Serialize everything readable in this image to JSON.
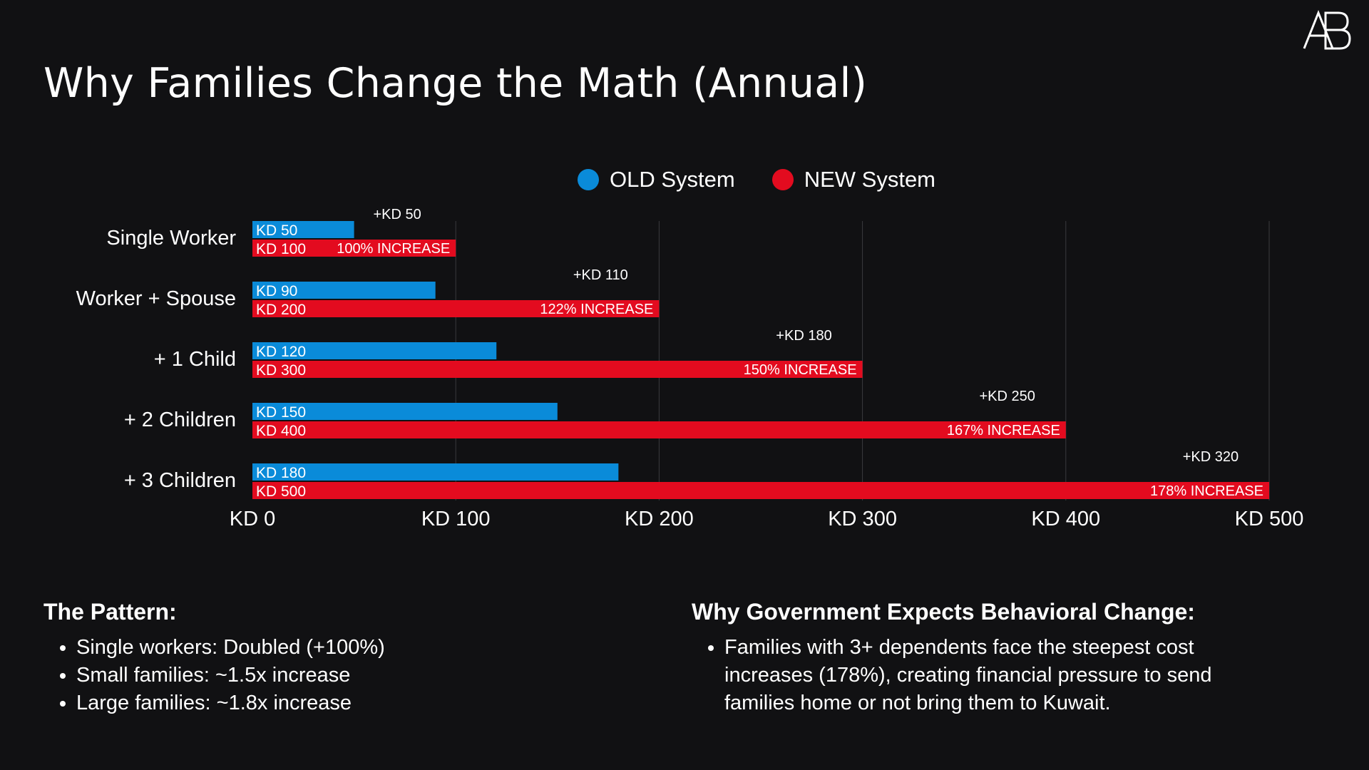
{
  "title": "Why Families Change the Math (Annual)",
  "logo_text": "AB",
  "legend": {
    "old": {
      "label": "OLD System",
      "color": "#0A8BD9"
    },
    "new": {
      "label": "NEW System",
      "color": "#E30B1F"
    }
  },
  "chart_data": {
    "type": "bar",
    "orientation": "horizontal",
    "title": "",
    "xlabel": "",
    "ylabel": "",
    "xlim": [
      0,
      500
    ],
    "grid": true,
    "legend_placement": "top-center",
    "x_tick_labels": [
      "KD 0",
      "KD 100",
      "KD 200",
      "KD 300",
      "KD 400",
      "KD 500"
    ],
    "categories": [
      "Single Worker",
      "Worker + Spouse",
      "+ 1 Child",
      "+ 2 Children",
      "+ 3 Children"
    ],
    "series": [
      {
        "name": "OLD System",
        "color": "#0A8BD9",
        "values": [
          50,
          90,
          120,
          150,
          180
        ],
        "labels": [
          "KD 50",
          "KD 90",
          "KD 120",
          "KD 150",
          "KD 180"
        ]
      },
      {
        "name": "NEW System",
        "color": "#E30B1F",
        "values": [
          100,
          200,
          300,
          400,
          500
        ],
        "labels": [
          "KD 100",
          "KD 200",
          "KD 300",
          "KD 400",
          "KD 500"
        ]
      }
    ],
    "annotations": [
      {
        "delta": "+KD 50",
        "increase": "100% INCREASE"
      },
      {
        "delta": "+KD 110",
        "increase": "122% INCREASE"
      },
      {
        "delta": "+KD 180",
        "increase": "150% INCREASE"
      },
      {
        "delta": "+KD 250",
        "increase": "167% INCREASE"
      },
      {
        "delta": "+KD 320",
        "increase": "178% INCREASE"
      }
    ]
  },
  "pattern": {
    "heading": "The Pattern:",
    "items": [
      "Single workers: Doubled (+100%)",
      "Small families: ~1.5x increase",
      "Large families: ~1.8x increase"
    ]
  },
  "why": {
    "heading": "Why Government Expects Behavioral Change:",
    "items": [
      "Families with 3+ dependents face the steepest cost increases (178%), creating financial pressure to send families home or not bring them to Kuwait."
    ]
  }
}
